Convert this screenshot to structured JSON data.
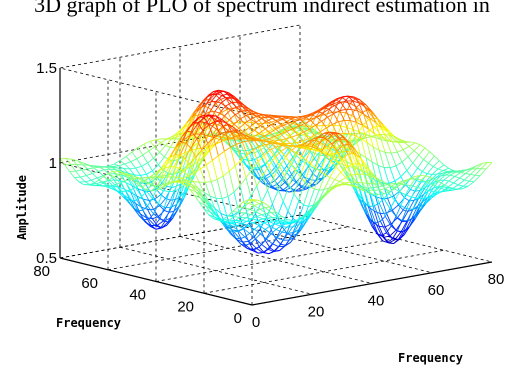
{
  "caption": "3D graph of PLO of spectrum indirect estimation in",
  "chart_data": {
    "type": "surface",
    "zlabel": "Amplitude",
    "xlabel": "Frequency",
    "ylabel": "Frequency",
    "zlim": [
      0.5,
      1.5
    ],
    "z_ticks": [
      "0.5",
      "1",
      "1.5"
    ],
    "xlim": [
      0,
      80
    ],
    "x_ticks": [
      "0",
      "20",
      "40",
      "60",
      "80"
    ],
    "ylim": [
      0,
      80
    ],
    "y_ticks": [
      "0",
      "20",
      "40",
      "60",
      "80"
    ],
    "grid": true,
    "colormap": "jet",
    "peaks": [
      {
        "x": 20,
        "y": 40,
        "z": 1.38
      },
      {
        "x": 40,
        "y": 60,
        "z": 1.42
      },
      {
        "x": 60,
        "y": 40,
        "z": 1.4
      },
      {
        "x": 40,
        "y": 20,
        "z": 1.3
      }
    ],
    "troughs": [
      {
        "x": 20,
        "y": 20,
        "z": 0.58
      },
      {
        "x": 60,
        "y": 20,
        "z": 0.56
      },
      {
        "x": 20,
        "y": 60,
        "z": 0.62
      },
      {
        "x": 60,
        "y": 60,
        "z": 0.65
      }
    ]
  }
}
